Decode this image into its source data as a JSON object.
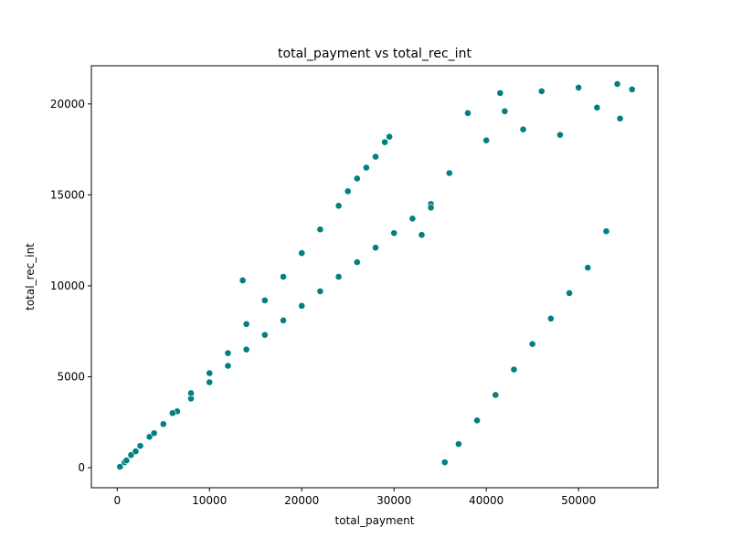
{
  "chart_data": {
    "type": "scatter",
    "title": "total_payment vs total_rec_int",
    "xlabel": "total_payment",
    "ylabel": "total_rec_int",
    "xlim": [
      -2800,
      58600
    ],
    "ylim": [
      -1100,
      22100
    ],
    "xticks": [
      0,
      10000,
      20000,
      30000,
      40000,
      50000
    ],
    "yticks": [
      0,
      5000,
      10000,
      15000,
      20000
    ],
    "xtick_labels": [
      "0",
      "10000",
      "20000",
      "30000",
      "40000",
      "50000"
    ],
    "ytick_labels": [
      "0",
      "5000",
      "10000",
      "15000",
      "20000"
    ],
    "marker_color": "#008080",
    "marker_edge_color": "#ffffff",
    "grid": false,
    "legend": "none",
    "series": [
      {
        "x": [
          300,
          800,
          1500,
          2500,
          3500,
          5000,
          6500,
          8000,
          10000,
          12000,
          14000,
          16000,
          18000,
          20000,
          22000,
          24000,
          26000,
          28000,
          30000,
          32000,
          34000,
          35500,
          37000,
          39000,
          41000,
          43000,
          45000,
          47000,
          49000,
          51000,
          53000,
          54500,
          55800,
          54200,
          52000,
          50000,
          48000,
          46000,
          44000,
          42000,
          41500,
          40000,
          38000,
          36000,
          34000,
          33000,
          29500,
          29000,
          28000,
          27000,
          26000,
          25000,
          24000,
          22000,
          20000,
          18000,
          16000,
          14000,
          13600,
          12000,
          10000,
          8000,
          6000,
          4000,
          2000,
          1000
        ],
        "y": [
          50,
          300,
          700,
          1200,
          1700,
          2400,
          3100,
          3800,
          4700,
          5600,
          6500,
          7300,
          8100,
          8900,
          9700,
          10500,
          11300,
          12100,
          12900,
          13700,
          14500,
          300,
          1300,
          2600,
          4000,
          5400,
          6800,
          8200,
          9600,
          11000,
          13000,
          19200,
          20800,
          21100,
          19800,
          20900,
          18300,
          20700,
          18600,
          19600,
          20600,
          18000,
          19500,
          16200,
          14300,
          12800,
          18200,
          17900,
          17100,
          16500,
          15900,
          15200,
          14400,
          13100,
          11800,
          10500,
          9200,
          7900,
          10300,
          6300,
          5200,
          4100,
          3000,
          1900,
          900,
          400
        ]
      }
    ]
  }
}
